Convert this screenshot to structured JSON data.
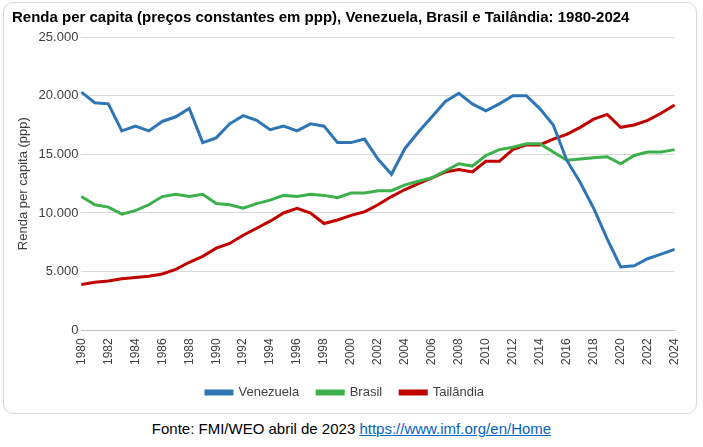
{
  "chart_data": {
    "type": "line",
    "title": "Renda per capita (preços constantes em ppp), Venezuela, Brasil e Tailândia: 1980-2024",
    "y_label": "Renda per capita (ppp)",
    "source": "Fonte: FMI/WEO abril de 2023",
    "source_link": "https://www.imf.org/en/Home",
    "categories": [
      "1980",
      null,
      "1982",
      null,
      "1984",
      null,
      "1986",
      null,
      "1988",
      null,
      "1990",
      null,
      "1992",
      null,
      "1994",
      null,
      "1996",
      null,
      "1998",
      null,
      "2000",
      null,
      "2002",
      null,
      "2004",
      null,
      "2006",
      null,
      "2008",
      null,
      "2010",
      null,
      "2012",
      null,
      "2014",
      null,
      "2016",
      null,
      "2018",
      null,
      "2020",
      null,
      "2022",
      null,
      "2024"
    ],
    "series": [
      {
        "name": "Venezuela",
        "color": "#2e75b6",
        "values": [
          20300,
          19400,
          19300,
          17000,
          17400,
          17000,
          17800,
          18200,
          18900,
          16000,
          16400,
          17600,
          18300,
          17900,
          17100,
          17400,
          17000,
          17600,
          17400,
          16000,
          16000,
          16300,
          14600,
          13300,
          15500,
          16900,
          18200,
          19500,
          20200,
          19300,
          18700,
          19300,
          20000,
          20000,
          18900,
          17500,
          14500,
          12600,
          10400,
          7800,
          5400,
          5500,
          6100,
          6500,
          6900
        ]
      },
      {
        "name": "Brasil",
        "color": "#3cb04a",
        "values": [
          11400,
          10700,
          10500,
          9900,
          10200,
          10700,
          11400,
          11600,
          11400,
          11600,
          10800,
          10700,
          10400,
          10800,
          11100,
          11500,
          11400,
          11600,
          11500,
          11300,
          11700,
          11700,
          11900,
          11900,
          12400,
          12700,
          13000,
          13600,
          14200,
          14000,
          14900,
          15400,
          15600,
          15900,
          15900,
          15200,
          14500,
          14600,
          14700,
          14800,
          14200,
          14900,
          15200,
          15200,
          15400
        ]
      },
      {
        "name": "Tailândia",
        "color": "#c00000",
        "values": [
          3900,
          4100,
          4200,
          4400,
          4500,
          4600,
          4800,
          5200,
          5800,
          6300,
          7000,
          7400,
          8100,
          8700,
          9300,
          10000,
          10400,
          10000,
          9100,
          9400,
          9800,
          10100,
          10700,
          11400,
          12000,
          12500,
          13000,
          13500,
          13700,
          13500,
          14400,
          14400,
          15400,
          15800,
          15800,
          16300,
          16700,
          17300,
          18000,
          18400,
          17300,
          17500,
          17900,
          18500,
          19200
        ]
      }
    ],
    "ylim": [
      0,
      25000
    ],
    "yticks": [
      0,
      {
        "value": 5000,
        "label": "5.000"
      },
      {
        "value": 10000,
        "label": "10.000"
      },
      {
        "value": 15000,
        "label": "15.000"
      },
      {
        "value": 20000,
        "label": "20.000"
      },
      {
        "value": 25000,
        "label": "25.000"
      }
    ],
    "grid": true,
    "legend": "bottom",
    "marker": "none"
  }
}
